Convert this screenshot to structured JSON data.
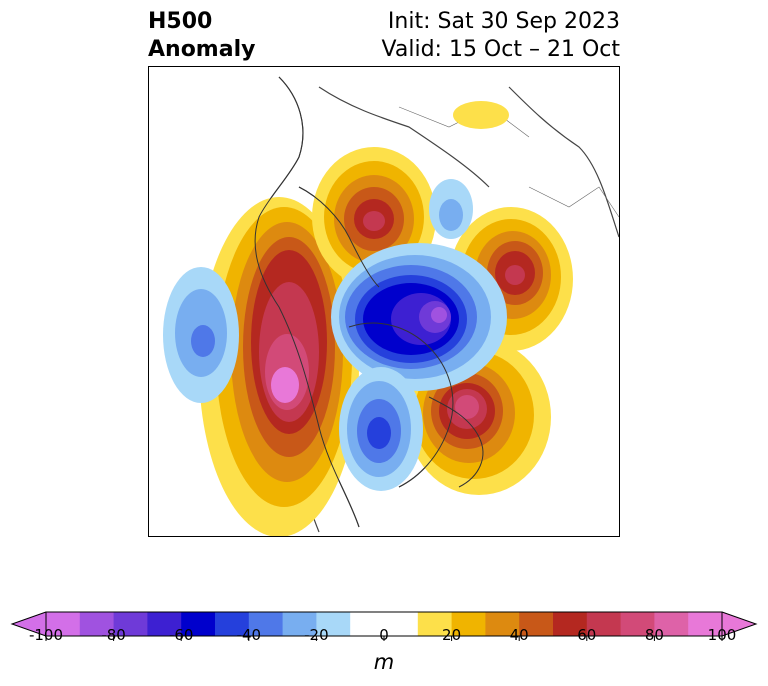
{
  "header": {
    "title_line1": "H500",
    "title_line2": "Anomaly",
    "init": "Init: Sat 30 Sep 2023",
    "valid": "Valid: 15 Oct – 21 Oct"
  },
  "colorbar": {
    "unit": "m",
    "ticks": [
      "-100",
      "-80",
      "-60",
      "-40",
      "-20",
      "0",
      "20",
      "40",
      "60",
      "80",
      "100"
    ],
    "colors": [
      "#d36fe8",
      "#a052e0",
      "#6f3ad8",
      "#3d20d2",
      "#0000cc",
      "#2540dc",
      "#4f78e8",
      "#78aef0",
      "#a8d8f8",
      "#ffffff",
      "#ffffff",
      "#fde04a",
      "#f0b400",
      "#dd8a10",
      "#c85818",
      "#b42820",
      "#c43850",
      "#d24a78",
      "#de62a8",
      "#e878d8"
    ]
  }
}
